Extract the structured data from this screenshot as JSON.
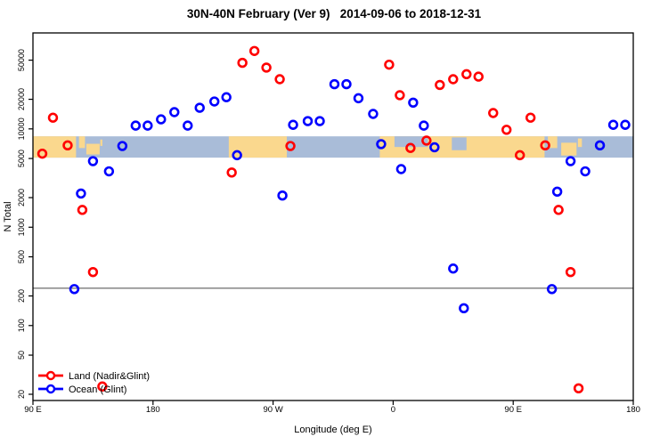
{
  "title": "30N-40N February (Ver 9)   2014-09-06 to 2018-12-31",
  "chart_data": {
    "type": "scatter",
    "title": "30N-40N February (Ver 9)   2014-09-06 to 2018-12-31",
    "xlabel": "Longitude (deg E)",
    "ylabel": "N Total",
    "x_axis": {
      "range_deg": [
        90,
        540
      ],
      "ticks": [
        {
          "deg": 90,
          "label": "90 E"
        },
        {
          "deg": 180,
          "label": "180"
        },
        {
          "deg": 270,
          "label": "90 W"
        },
        {
          "deg": 360,
          "label": "0"
        },
        {
          "deg": 450,
          "label": "90 E"
        },
        {
          "deg": 540,
          "label": "180"
        }
      ]
    },
    "y_axis": {
      "scale": "log10",
      "ticks": [
        20,
        50,
        100,
        200,
        500,
        1000,
        2000,
        5000,
        10000,
        20000,
        50000
      ],
      "anchor_value": 20,
      "top_value": 50000
    },
    "reference_line": {
      "value": 240,
      "color": "#7a7a7a"
    },
    "grid": false,
    "legend_position": "bottom-left-inside",
    "series": [
      {
        "name": "Land (Nadir&Glint)",
        "color": "#ff0000",
        "marker": "open-circle",
        "points": [
          [
            97,
            5600
          ],
          [
            105,
            13000
          ],
          [
            116,
            6800
          ],
          [
            127,
            1500
          ],
          [
            135,
            350
          ],
          [
            142,
            24
          ],
          [
            239,
            3600
          ],
          [
            247,
            47000
          ],
          [
            256,
            62000
          ],
          [
            265,
            42000
          ],
          [
            275,
            32000
          ],
          [
            283,
            6700
          ],
          [
            357,
            45000
          ],
          [
            365,
            22000
          ],
          [
            373,
            6400
          ],
          [
            385,
            7600
          ],
          [
            395,
            28000
          ],
          [
            405,
            32000
          ],
          [
            415,
            36000
          ],
          [
            424,
            34000
          ],
          [
            435,
            14500
          ],
          [
            445,
            9800
          ],
          [
            455,
            5400
          ],
          [
            463,
            13000
          ],
          [
            474,
            6800
          ],
          [
            484,
            1500
          ],
          [
            493,
            350
          ],
          [
            499,
            23
          ]
        ]
      },
      {
        "name": "Ocean (Glint)",
        "color": "#0000ff",
        "marker": "open-circle",
        "points": [
          [
            121,
            235
          ],
          [
            126,
            2200
          ],
          [
            135,
            4700
          ],
          [
            147,
            3700
          ],
          [
            157,
            6700
          ],
          [
            167,
            10800
          ],
          [
            176,
            10800
          ],
          [
            186,
            12500
          ],
          [
            196,
            14800
          ],
          [
            206,
            10800
          ],
          [
            215,
            16400
          ],
          [
            226,
            19000
          ],
          [
            235,
            21000
          ],
          [
            243,
            5400
          ],
          [
            277,
            2100
          ],
          [
            285,
            11000
          ],
          [
            296,
            12000
          ],
          [
            305,
            12000
          ],
          [
            316,
            28500
          ],
          [
            325,
            28500
          ],
          [
            334,
            20500
          ],
          [
            345,
            14200
          ],
          [
            351,
            7000
          ],
          [
            366,
            3900
          ],
          [
            375,
            18500
          ],
          [
            383,
            10800
          ],
          [
            391,
            6500
          ],
          [
            405,
            380
          ],
          [
            413,
            150
          ],
          [
            479,
            235
          ],
          [
            483,
            2300
          ],
          [
            493,
            4700
          ],
          [
            504,
            3700
          ],
          [
            515,
            6800
          ],
          [
            525,
            11000
          ],
          [
            534,
            11000
          ]
        ]
      }
    ],
    "map_band": {
      "description": "30N-40N latitude strip of world map",
      "value_top": 8400,
      "value_bottom": 5100,
      "ocean_color": "#a9bcd8",
      "land_color": "#fad88e",
      "land_segments": [
        {
          "from": 90,
          "to": 122.3,
          "top": 0,
          "bottom": 1
        },
        {
          "from": 124.5,
          "to": 129,
          "top": 0,
          "bottom": 0.55
        },
        {
          "from": 130,
          "to": 140,
          "top": 0.35,
          "bottom": 0.85
        },
        {
          "from": 140.5,
          "to": 142,
          "top": 0.15,
          "bottom": 0.45
        },
        {
          "from": 236.8,
          "to": 280.3,
          "top": 0,
          "bottom": 1
        },
        {
          "from": 350,
          "to": 473.5,
          "top": 0,
          "bottom": 1
        },
        {
          "from": 476,
          "to": 483,
          "top": 0,
          "bottom": 0.55
        },
        {
          "from": 486,
          "to": 497.5,
          "top": 0.3,
          "bottom": 0.9
        },
        {
          "from": 498.5,
          "to": 501.5,
          "top": 0.1,
          "bottom": 0.5
        }
      ],
      "ocean_patches": [
        {
          "from": 361,
          "to": 386,
          "top": 0,
          "bottom": 0.5
        },
        {
          "from": 404,
          "to": 415,
          "top": 0.05,
          "bottom": 0.65
        }
      ]
    }
  },
  "legend": {
    "items": [
      {
        "label": "Land (Nadir&Glint)",
        "color": "#ff0000"
      },
      {
        "label": "Ocean (Glint)",
        "color": "#0000ff"
      }
    ]
  }
}
